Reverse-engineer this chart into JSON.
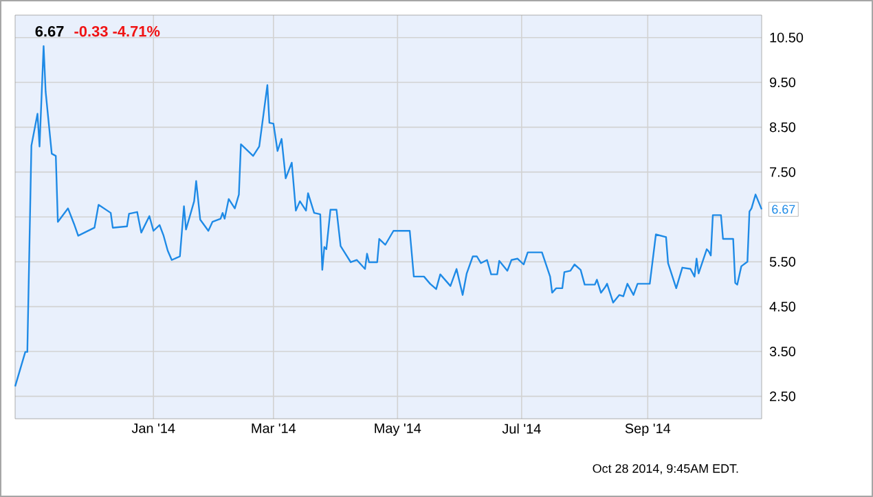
{
  "chart_data": {
    "type": "line",
    "title": "6.67",
    "subtitle": "-0.33  -4.71%",
    "annotations": [
      {
        "text": "6.67",
        "x": "2014-10-27",
        "y": 6.67
      },
      "Oct 28 2014, 9:45AM EDT."
    ],
    "x": [
      "2013-10-25",
      "2013-10-30",
      "2013-10-31",
      "2013-11-02",
      "2013-11-05",
      "2013-11-06",
      "2013-11-08",
      "2013-11-09",
      "2013-11-12",
      "2013-11-14",
      "2013-11-15",
      "2013-11-20",
      "2013-11-23",
      "2013-11-25",
      "2013-12-03",
      "2013-12-05",
      "2013-12-11",
      "2013-12-12",
      "2013-12-19",
      "2013-12-20",
      "2013-12-24",
      "2013-12-26",
      "2013-12-30",
      "2014-01-01",
      "2014-01-04",
      "2014-01-06",
      "2014-01-08",
      "2014-01-10",
      "2014-01-14",
      "2014-01-16",
      "2014-01-17",
      "2014-01-21",
      "2014-01-22",
      "2014-01-24",
      "2014-01-28",
      "2014-01-30",
      "2014-02-03",
      "2014-02-04",
      "2014-02-05",
      "2014-02-07",
      "2014-02-10",
      "2014-02-12",
      "2014-02-13",
      "2014-02-19",
      "2014-02-22",
      "2014-02-26",
      "2014-02-27",
      "2014-03-01",
      "2014-03-03",
      "2014-03-05",
      "2014-03-07",
      "2014-03-10",
      "2014-03-12",
      "2014-03-14",
      "2014-03-17",
      "2014-03-18",
      "2014-03-21",
      "2014-03-24",
      "2014-03-25",
      "2014-03-26",
      "2014-03-27",
      "2014-03-29",
      "2014-04-01",
      "2014-04-03",
      "2014-04-04",
      "2014-04-08",
      "2014-04-11",
      "2014-04-15",
      "2014-04-16",
      "2014-04-17",
      "2014-04-21",
      "2014-04-22",
      "2014-04-25",
      "2014-04-29",
      "2014-05-07",
      "2014-05-09",
      "2014-05-14",
      "2014-05-17",
      "2014-05-20",
      "2014-05-22",
      "2014-05-27",
      "2014-05-30",
      "2014-06-02",
      "2014-06-04",
      "2014-06-07",
      "2014-06-09",
      "2014-06-11",
      "2014-06-14",
      "2014-06-16",
      "2014-06-19",
      "2014-06-20",
      "2014-06-24",
      "2014-06-26",
      "2014-06-29",
      "2014-07-02",
      "2014-07-04",
      "2014-07-11",
      "2014-07-15",
      "2014-07-16",
      "2014-07-18",
      "2014-07-21",
      "2014-07-22",
      "2014-07-25",
      "2014-07-27",
      "2014-07-30",
      "2014-08-01",
      "2014-08-06",
      "2014-08-07",
      "2014-08-09",
      "2014-08-11",
      "2014-08-12",
      "2014-08-15",
      "2014-08-18",
      "2014-08-20",
      "2014-08-22",
      "2014-08-25",
      "2014-08-27",
      "2014-09-02",
      "2014-09-05",
      "2014-09-10",
      "2014-09-11",
      "2014-09-15",
      "2014-09-18",
      "2014-09-22",
      "2014-09-24",
      "2014-09-25",
      "2014-09-26",
      "2014-09-30",
      "2014-10-01",
      "2014-10-02",
      "2014-10-03",
      "2014-10-07",
      "2014-10-08",
      "2014-10-13",
      "2014-10-14",
      "2014-10-15",
      "2014-10-17",
      "2014-10-20",
      "2014-10-21",
      "2014-10-22",
      "2014-10-24",
      "2014-10-27"
    ],
    "values": [
      2.72,
      3.49,
      3.49,
      8.09,
      8.8,
      8.07,
      10.31,
      9.29,
      7.91,
      7.86,
      6.39,
      6.69,
      6.34,
      6.08,
      6.26,
      6.77,
      6.59,
      6.26,
      6.29,
      6.57,
      6.61,
      6.15,
      6.52,
      6.19,
      6.32,
      6.08,
      5.75,
      5.54,
      5.62,
      6.74,
      6.22,
      6.85,
      7.3,
      6.44,
      6.19,
      6.39,
      6.46,
      6.59,
      6.46,
      6.9,
      6.69,
      7.0,
      8.12,
      7.86,
      8.07,
      9.44,
      8.6,
      8.58,
      7.97,
      8.24,
      7.36,
      7.71,
      6.64,
      6.85,
      6.64,
      7.03,
      6.59,
      6.56,
      5.32,
      5.83,
      5.78,
      6.66,
      6.66,
      5.85,
      5.78,
      5.49,
      5.54,
      5.34,
      5.68,
      5.49,
      5.49,
      6.01,
      5.88,
      6.19,
      6.19,
      5.17,
      5.17,
      5.01,
      4.89,
      5.22,
      4.96,
      5.34,
      4.76,
      5.24,
      5.62,
      5.62,
      5.47,
      5.54,
      5.22,
      5.22,
      5.52,
      5.3,
      5.54,
      5.57,
      5.44,
      5.71,
      5.71,
      5.17,
      4.81,
      4.91,
      4.91,
      5.27,
      5.3,
      5.44,
      5.32,
      4.99,
      4.99,
      5.1,
      4.81,
      4.93,
      5.01,
      4.59,
      4.76,
      4.73,
      5.01,
      4.76,
      5.01,
      5.01,
      6.11,
      6.05,
      5.47,
      4.91,
      5.37,
      5.34,
      5.17,
      5.57,
      5.24,
      5.78,
      5.73,
      5.64,
      6.54,
      6.54,
      6.01,
      6.01,
      5.03,
      4.99,
      5.4,
      5.5,
      6.62,
      6.69,
      7.0,
      6.67
    ],
    "color": "#1e8ae6",
    "marker": "none",
    "line_style": "solid",
    "grid": true,
    "xlim": [
      "2013-10-25",
      "2014-10-27"
    ],
    "xticks": [
      {
        "value": "2014-01-01",
        "label": "Jan '14"
      },
      {
        "value": "2014-03-01",
        "label": "Mar '14"
      },
      {
        "value": "2014-05-01",
        "label": "May '14"
      },
      {
        "value": "2014-07-01",
        "label": "Jul '14"
      },
      {
        "value": "2014-09-01",
        "label": "Sep '14"
      }
    ],
    "ylim": [
      2.0,
      11.0
    ],
    "yticks": [
      {
        "value": 2.5,
        "label": "2.50"
      },
      {
        "value": 3.5,
        "label": "3.50"
      },
      {
        "value": 4.5,
        "label": "4.50"
      },
      {
        "value": 5.5,
        "label": "5.50"
      },
      {
        "value": 6.5,
        "label": null
      },
      {
        "value": 7.5,
        "label": "7.50"
      },
      {
        "value": 8.5,
        "label": "8.50"
      },
      {
        "value": 9.5,
        "label": "9.50"
      },
      {
        "value": 10.5,
        "label": "10.50"
      }
    ]
  }
}
